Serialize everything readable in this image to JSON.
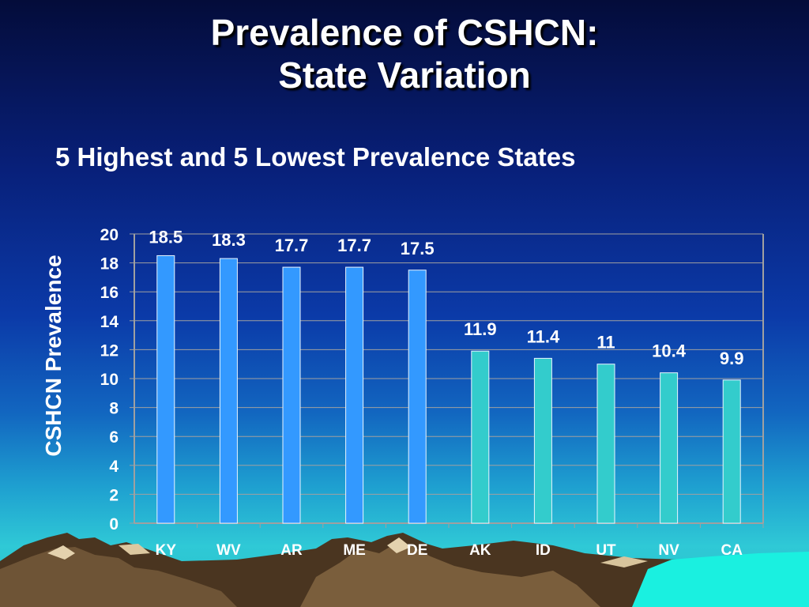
{
  "title_line1": "Prevalence of CSHCN:",
  "title_line2": "State Variation",
  "subtitle": "5 Highest and 5 Lowest Prevalence States",
  "colors": {
    "highest_bars": "#3399ff",
    "lowest_bars": "#33cccc",
    "axis": "#a0a0a0",
    "text": "#ffffff"
  },
  "chart_data": {
    "type": "bar",
    "title": "5 Highest and 5 Lowest Prevalence States",
    "xlabel": "",
    "ylabel": "CSHCN Prevalence",
    "ylim": [
      0,
      20
    ],
    "yticks": [
      0,
      2,
      4,
      6,
      8,
      10,
      12,
      14,
      16,
      18,
      20
    ],
    "grid": true,
    "categories": [
      "KY",
      "WV",
      "AR",
      "ME",
      "DE",
      "AK",
      "ID",
      "UT",
      "NV",
      "CA"
    ],
    "values": [
      18.5,
      18.3,
      17.7,
      17.7,
      17.5,
      11.9,
      11.4,
      11,
      10.4,
      9.9
    ],
    "data_labels": [
      "18.5",
      "18.3",
      "17.7",
      "17.7",
      "17.5",
      "11.9",
      "11.4",
      "11",
      "10.4",
      "9.9"
    ]
  }
}
